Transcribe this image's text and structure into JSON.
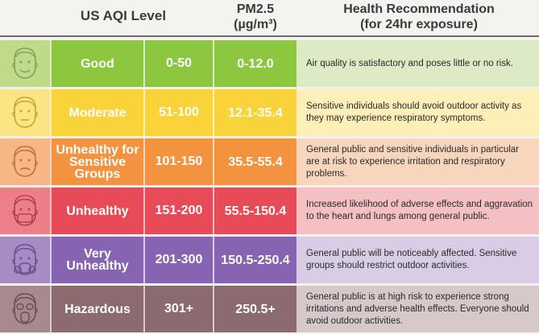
{
  "header": {
    "aqi_level": "US AQI Level",
    "pm_title": "PM2.5",
    "pm_unit": "(µg/m³)",
    "rec_title": "Health Recommendation",
    "rec_sub": "(for 24hr exposure)"
  },
  "rows": [
    {
      "level": "Good",
      "range": "0-50",
      "pm": "0-12.0",
      "rec": "Air quality is satisfactory and poses little or no risk.",
      "face_icon": "smiling-face-icon",
      "colors": {
        "face_bg": "#bfdb8a",
        "main": "#8dc63f",
        "rec_bg": "#dcebc6",
        "stroke": "#7ba85a"
      }
    },
    {
      "level": "Moderate",
      "range": "51-100",
      "pm": "12.1-35.4",
      "rec": "Sensitive individuals should avoid outdoor activity as they may experience respiratory symptoms.",
      "face_icon": "neutral-face-icon",
      "colors": {
        "face_bg": "#fbe483",
        "main": "#f9d33a",
        "rec_bg": "#fcefb8",
        "stroke": "#c9a52a"
      }
    },
    {
      "level": "Unhealthy for Sensitive Groups",
      "range": "101-150",
      "pm": "35.5-55.4",
      "rec": "General public and sensitive individuals in particular are at risk to experience irritation and respiratory problems.",
      "face_icon": "worried-face-icon",
      "colors": {
        "face_bg": "#f7b685",
        "main": "#f3923f",
        "rec_bg": "#f8d6bd",
        "stroke": "#c77236"
      }
    },
    {
      "level": "Unhealthy",
      "range": "151-200",
      "pm": "55.5-150.4",
      "rec": "Increased likelihood of adverse effects and aggravation to the heart and lungs among general public.",
      "face_icon": "mask-face-icon",
      "colors": {
        "face_bg": "#ee7f88",
        "main": "#e84a57",
        "rec_bg": "#f4c0c3",
        "stroke": "#b2404a"
      }
    },
    {
      "level": "Very Unhealthy",
      "range": "201-300",
      "pm": "150.5-250.4",
      "rec": "General public will be noticeably affected. Sensitive groups should restrict outdoor activities.",
      "face_icon": "respirator-face-icon",
      "colors": {
        "face_bg": "#a58cc2",
        "main": "#8664b2",
        "rec_bg": "#d9cde6",
        "stroke": "#6e4f93"
      }
    },
    {
      "level": "Hazardous",
      "range": "301+",
      "pm": "250.5+",
      "rec": "General public is at high risk to experience strong irritations and adverse health effects. Everyone should avoid outdoor activities.",
      "face_icon": "gas-mask-face-icon",
      "colors": {
        "face_bg": "#a58a8e",
        "main": "#8c6b70",
        "rec_bg": "#d7c9ca",
        "stroke": "#6a4f53"
      }
    }
  ]
}
